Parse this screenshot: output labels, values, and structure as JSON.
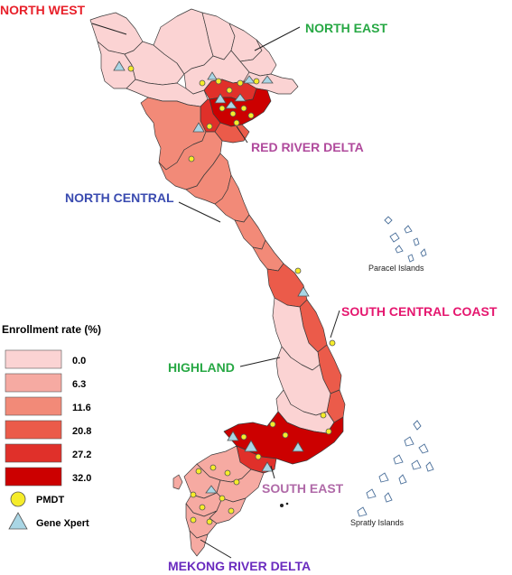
{
  "colors": {
    "rate_0": "#fbd3d3",
    "rate_6_3": "#f6aaa2",
    "rate_11_6": "#f28a78",
    "rate_20_8": "#eb5b4a",
    "rate_27_2": "#e0302a",
    "rate_32_0": "#cc0000",
    "pmdt": "#f5ec2a",
    "genexpert": "#a9d6e5"
  },
  "regions": [
    {
      "id": "north-west",
      "label": "NORTH WEST",
      "color": "#e8202a"
    },
    {
      "id": "north-east",
      "label": "NORTH EAST",
      "color": "#27a844"
    },
    {
      "id": "red-river-delta",
      "label": "RED RIVER DELTA",
      "color": "#b04a9c"
    },
    {
      "id": "north-central",
      "label": "NORTH CENTRAL",
      "color": "#3a4bb0"
    },
    {
      "id": "south-central-coast",
      "label": "SOUTH CENTRAL COAST",
      "color": "#e5176f"
    },
    {
      "id": "highland",
      "label": "HIGHLAND",
      "color": "#27a844"
    },
    {
      "id": "south-east",
      "label": "SOUTH EAST",
      "color": "#b06aa8"
    },
    {
      "id": "mekong-river-delta",
      "label": "MEKONG RIVER DELTA",
      "color": "#6a2bbf"
    }
  ],
  "islands": {
    "paracel": "Paracel Islands",
    "spratly": "Spratly Islands"
  },
  "legend": {
    "title": "Enrollment rate (%)",
    "classes": [
      {
        "value": "0.0",
        "color": "#fbd3d3"
      },
      {
        "value": "6.3",
        "color": "#f6aaa2"
      },
      {
        "value": "11.6",
        "color": "#f28a78"
      },
      {
        "value": "20.8",
        "color": "#eb5b4a"
      },
      {
        "value": "27.2",
        "color": "#e0302a"
      },
      {
        "value": "32.0",
        "color": "#cc0000"
      }
    ],
    "symbols": [
      {
        "id": "pmdt",
        "label": "PMDT",
        "icon": "yellow-circle-icon"
      },
      {
        "id": "genexpert",
        "label": "Gene Xpert",
        "icon": "blue-triangle-icon"
      }
    ]
  }
}
